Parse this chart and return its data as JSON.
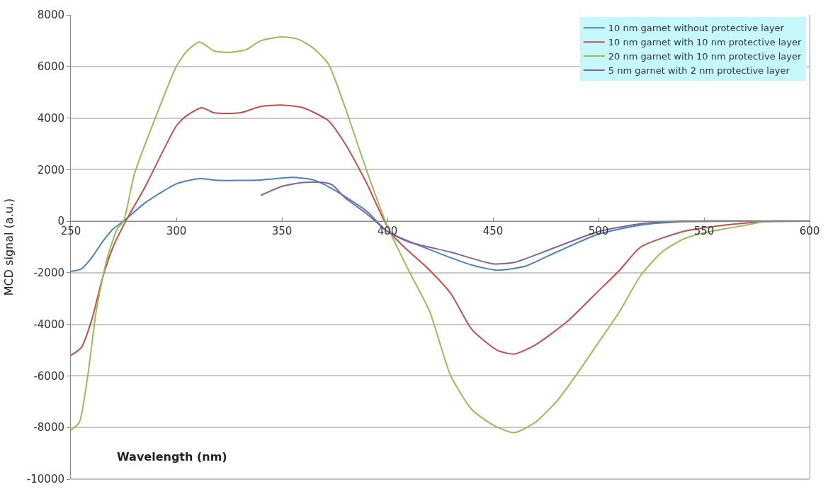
{
  "chart_data": {
    "type": "line",
    "xlabel": "Wavelength (nm)",
    "ylabel": "MCD signal (a.u.)",
    "xlim": [
      250,
      600
    ],
    "xticks": [
      250,
      300,
      350,
      400,
      450,
      500,
      550,
      600
    ],
    "ylim": [
      -10000,
      8000
    ],
    "yticks": [
      -10000,
      -8000,
      -6000,
      -4000,
      -2000,
      0,
      2000,
      4000,
      6000,
      8000
    ],
    "grid": "y",
    "legend": "top right",
    "line_style": "solid",
    "marker": "none",
    "series": [
      {
        "name": "10 nm garnet without protective layer",
        "color": "#4f81bd",
        "x": [
          250,
          255,
          260,
          265,
          270,
          275,
          285,
          300,
          311,
          320,
          340,
          355,
          365,
          375,
          390,
          400,
          420,
          440,
          452,
          465,
          480,
          500,
          520,
          540,
          600
        ],
        "values": [
          -1950,
          -1850,
          -1400,
          -800,
          -300,
          0,
          700,
          1450,
          1650,
          1580,
          1600,
          1700,
          1600,
          1200,
          400,
          -400,
          -1100,
          -1700,
          -1900,
          -1750,
          -1200,
          -500,
          -150,
          -20,
          0
        ]
      },
      {
        "name": "10 nm garnet with 10 nm protective layer",
        "color": "#c0504d",
        "x": [
          250,
          255,
          260,
          265,
          270,
          276,
          285,
          300,
          305,
          312,
          318,
          330,
          340,
          350,
          360,
          372,
          380,
          390,
          402,
          420,
          430,
          440,
          452,
          460,
          470,
          485,
          500,
          510,
          520,
          540,
          560,
          580,
          600
        ],
        "values": [
          -5200,
          -4900,
          -3800,
          -2200,
          -1000,
          0,
          1300,
          3700,
          4100,
          4400,
          4200,
          4200,
          4450,
          4500,
          4400,
          3900,
          3000,
          1500,
          -500,
          -1900,
          -2800,
          -4200,
          -5000,
          -5150,
          -4800,
          -3900,
          -2700,
          -1900,
          -1000,
          -400,
          -150,
          -20,
          0
        ]
      },
      {
        "name": "20 nm garnet with 10 nm protective layer",
        "color": "#9bbb59",
        "x": [
          250,
          254,
          258,
          262,
          267,
          272,
          275,
          280,
          290,
          300,
          305,
          311,
          318,
          325,
          333,
          340,
          350,
          358,
          365,
          372,
          380,
          390,
          400,
          410,
          420,
          430,
          440,
          450,
          460,
          470,
          480,
          490,
          500,
          510,
          520,
          530,
          540,
          550,
          570,
          580,
          600
        ],
        "values": [
          -8100,
          -7800,
          -6000,
          -3500,
          -1500,
          -300,
          0,
          1800,
          4000,
          6000,
          6600,
          6950,
          6600,
          6550,
          6650,
          7000,
          7150,
          7050,
          6700,
          6100,
          4400,
          2000,
          -200,
          -1900,
          -3500,
          -6000,
          -7300,
          -7900,
          -8200,
          -7800,
          -7000,
          -5900,
          -4700,
          -3500,
          -2100,
          -1200,
          -700,
          -450,
          -150,
          0,
          0
        ]
      },
      {
        "name": "5 nm garnet with 2 nm protective layer",
        "color": "#8064a2",
        "x": [
          340,
          350,
          360,
          370,
          374,
          380,
          390,
          400,
          410,
          430,
          450,
          460,
          480,
          500,
          520,
          540,
          600
        ],
        "values": [
          1000,
          1350,
          1500,
          1500,
          1400,
          900,
          300,
          -400,
          -800,
          -1200,
          -1650,
          -1600,
          -1000,
          -400,
          -100,
          0,
          0
        ]
      }
    ]
  }
}
